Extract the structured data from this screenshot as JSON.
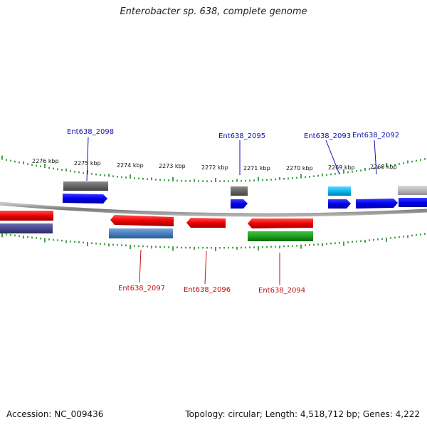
{
  "title": "Enterobacter sp. 638, complete genome",
  "accession": "Accession: NC_009436",
  "summary": "Topology: circular; Length: 4,518,712 bp; Genes: 4,222",
  "colors": {
    "axis": "#888888",
    "tick": "#1a8a1a",
    "label_top": "#1010b0",
    "label_bottom": "#c01010"
  },
  "scale_labels": [
    "2276 kbp",
    "2275 kbp",
    "2274 kbp",
    "2273 kbp",
    "2272 kbp",
    "2271 kbp",
    "2270 kbp",
    "2269 kbp",
    "2268 kbp"
  ],
  "gene_labels": {
    "g2098": "Ent638_2098",
    "g2095": "Ent638_2095",
    "g2093": "Ent638_2093",
    "g2092": "Ent638_2092",
    "g2097": "Ent638_2097",
    "g2096": "Ent638_2096",
    "g2094": "Ent638_2094"
  }
}
